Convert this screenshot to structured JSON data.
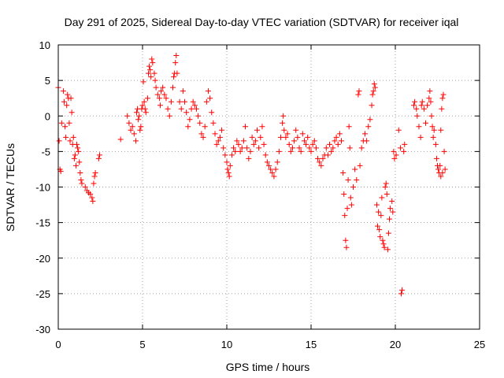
{
  "chart_data": {
    "type": "scatter",
    "title": "Day 291 of 2025, Sidereal Day-to-day VTEC variation (SDTVAR) for receiver iqal",
    "xlabel": "GPS time / hours",
    "ylabel": "SDTVAR / TECUs",
    "xlim": [
      0,
      25
    ],
    "ylim": [
      -30,
      10
    ],
    "xticks": [
      0,
      5,
      10,
      15,
      20,
      25
    ],
    "yticks": [
      -30,
      -25,
      -20,
      -15,
      -10,
      -5,
      0,
      5,
      10
    ],
    "xtick_labels": [
      "0",
      "5",
      "10",
      "15",
      "20",
      "25"
    ],
    "ytick_labels": [
      "-30",
      "-25",
      "-20",
      "-15",
      "-10",
      "-5",
      "0",
      "5",
      "10"
    ],
    "grid": true,
    "marker": "+",
    "marker_color": "#ff0000",
    "series": [
      {
        "name": "SDTVAR",
        "points": [
          [
            0.0,
            4.0
          ],
          [
            0.05,
            -3.5
          ],
          [
            0.1,
            -7.5
          ],
          [
            0.15,
            -7.8
          ],
          [
            0.2,
            -1.0
          ],
          [
            0.3,
            3.5
          ],
          [
            0.35,
            2.0
          ],
          [
            0.4,
            -1.5
          ],
          [
            0.45,
            -3.0
          ],
          [
            0.5,
            1.5
          ],
          [
            0.55,
            3.0
          ],
          [
            0.6,
            2.5
          ],
          [
            0.65,
            -1.0
          ],
          [
            0.7,
            -3.5
          ],
          [
            0.75,
            2.5
          ],
          [
            0.8,
            0.5
          ],
          [
            0.85,
            -4.0
          ],
          [
            0.9,
            -3.0
          ],
          [
            0.95,
            -6.0
          ],
          [
            1.0,
            -5.5
          ],
          [
            1.05,
            -7.0
          ],
          [
            1.1,
            -4.0
          ],
          [
            1.15,
            -4.5
          ],
          [
            1.2,
            -5.0
          ],
          [
            1.25,
            -6.5
          ],
          [
            1.3,
            -8.0
          ],
          [
            1.35,
            -9.0
          ],
          [
            1.4,
            -9.5
          ],
          [
            1.6,
            -10.0
          ],
          [
            1.7,
            -10.5
          ],
          [
            1.8,
            -10.8
          ],
          [
            1.9,
            -11.0
          ],
          [
            2.0,
            -11.5
          ],
          [
            2.05,
            -12.0
          ],
          [
            2.1,
            -9.5
          ],
          [
            2.15,
            -8.5
          ],
          [
            2.2,
            -8.0
          ],
          [
            2.4,
            -6.0
          ],
          [
            2.45,
            -5.5
          ],
          [
            3.7,
            -3.3
          ],
          [
            4.1,
            0.0
          ],
          [
            4.2,
            -1.0
          ],
          [
            4.3,
            -2.0
          ],
          [
            4.4,
            -1.5
          ],
          [
            4.5,
            -2.5
          ],
          [
            4.6,
            -3.5
          ],
          [
            4.65,
            0.5
          ],
          [
            4.7,
            1.0
          ],
          [
            4.75,
            -0.5
          ],
          [
            4.8,
            0.0
          ],
          [
            4.85,
            -2.0
          ],
          [
            4.9,
            -1.5
          ],
          [
            4.95,
            1.0
          ],
          [
            5.0,
            1.5
          ],
          [
            5.05,
            4.8
          ],
          [
            5.1,
            2.0
          ],
          [
            5.15,
            1.0
          ],
          [
            5.2,
            0.5
          ],
          [
            5.3,
            2.5
          ],
          [
            5.35,
            6.0
          ],
          [
            5.4,
            7.0
          ],
          [
            5.45,
            6.5
          ],
          [
            5.5,
            5.5
          ],
          [
            5.55,
            8.0
          ],
          [
            5.6,
            7.5
          ],
          [
            5.7,
            6.0
          ],
          [
            5.75,
            5.0
          ],
          [
            5.8,
            4.0
          ],
          [
            5.9,
            3.0
          ],
          [
            6.0,
            2.5
          ],
          [
            6.05,
            1.5
          ],
          [
            6.1,
            3.5
          ],
          [
            6.2,
            4.0
          ],
          [
            6.3,
            3.0
          ],
          [
            6.4,
            2.5
          ],
          [
            6.5,
            1.0
          ],
          [
            6.6,
            0.0
          ],
          [
            6.7,
            2.0
          ],
          [
            6.8,
            4.0
          ],
          [
            6.85,
            5.5
          ],
          [
            6.9,
            6.0
          ],
          [
            6.95,
            7.5
          ],
          [
            7.0,
            8.5
          ],
          [
            7.05,
            6.0
          ],
          [
            7.2,
            2.0
          ],
          [
            7.3,
            1.0
          ],
          [
            7.4,
            3.5
          ],
          [
            7.5,
            2.0
          ],
          [
            7.6,
            0.5
          ],
          [
            7.7,
            -1.5
          ],
          [
            7.8,
            -0.5
          ],
          [
            7.9,
            1.0
          ],
          [
            8.0,
            2.0
          ],
          [
            8.1,
            1.5
          ],
          [
            8.2,
            1.0
          ],
          [
            8.3,
            0.0
          ],
          [
            8.4,
            -1.0
          ],
          [
            8.5,
            -2.5
          ],
          [
            8.6,
            -3.0
          ],
          [
            8.7,
            -1.5
          ],
          [
            8.8,
            2.0
          ],
          [
            8.9,
            3.5
          ],
          [
            9.0,
            2.5
          ],
          [
            9.1,
            0.5
          ],
          [
            9.2,
            -1.0
          ],
          [
            9.3,
            -2.5
          ],
          [
            9.4,
            -4.0
          ],
          [
            9.5,
            -3.5
          ],
          [
            9.6,
            -3.0
          ],
          [
            9.7,
            -2.0
          ],
          [
            9.8,
            -4.5
          ],
          [
            9.9,
            -5.5
          ],
          [
            10.0,
            -6.5
          ],
          [
            10.05,
            -7.5
          ],
          [
            10.1,
            -8.0
          ],
          [
            10.15,
            -8.5
          ],
          [
            10.2,
            -7.0
          ],
          [
            10.3,
            -5.5
          ],
          [
            10.4,
            -4.5
          ],
          [
            10.5,
            -5.0
          ],
          [
            10.6,
            -3.5
          ],
          [
            10.7,
            -4.0
          ],
          [
            10.8,
            -5.0
          ],
          [
            10.9,
            -4.5
          ],
          [
            11.0,
            -3.5
          ],
          [
            11.1,
            -1.5
          ],
          [
            11.2,
            -4.5
          ],
          [
            11.3,
            -6.0
          ],
          [
            11.4,
            -5.0
          ],
          [
            11.5,
            -3.0
          ],
          [
            11.6,
            -4.0
          ],
          [
            11.7,
            -3.5
          ],
          [
            11.8,
            -2.0
          ],
          [
            11.9,
            -4.5
          ],
          [
            12.0,
            -3.0
          ],
          [
            12.1,
            -1.5
          ],
          [
            12.2,
            -4.0
          ],
          [
            12.3,
            -5.5
          ],
          [
            12.4,
            -6.5
          ],
          [
            12.5,
            -7.0
          ],
          [
            12.6,
            -7.5
          ],
          [
            12.7,
            -8.0
          ],
          [
            12.8,
            -8.5
          ],
          [
            12.9,
            -7.5
          ],
          [
            13.0,
            -6.5
          ],
          [
            13.1,
            -5.0
          ],
          [
            13.2,
            -3.0
          ],
          [
            13.3,
            -1.0
          ],
          [
            13.35,
            0.0
          ],
          [
            13.4,
            -2.0
          ],
          [
            13.5,
            -3.0
          ],
          [
            13.6,
            -2.5
          ],
          [
            13.7,
            -4.0
          ],
          [
            13.8,
            -5.0
          ],
          [
            13.9,
            -4.5
          ],
          [
            14.0,
            -3.5
          ],
          [
            14.1,
            -2.0
          ],
          [
            14.2,
            -3.0
          ],
          [
            14.3,
            -4.5
          ],
          [
            14.4,
            -5.0
          ],
          [
            14.5,
            -2.5
          ],
          [
            14.6,
            -3.5
          ],
          [
            14.7,
            -4.0
          ],
          [
            14.8,
            -3.0
          ],
          [
            14.9,
            -4.5
          ],
          [
            15.0,
            -5.0
          ],
          [
            15.1,
            -4.0
          ],
          [
            15.2,
            -3.5
          ],
          [
            15.3,
            -4.5
          ],
          [
            15.4,
            -6.0
          ],
          [
            15.5,
            -6.5
          ],
          [
            15.6,
            -7.0
          ],
          [
            15.7,
            -6.0
          ],
          [
            15.8,
            -5.5
          ],
          [
            15.9,
            -4.5
          ],
          [
            16.0,
            -5.5
          ],
          [
            16.1,
            -4.0
          ],
          [
            16.2,
            -5.0
          ],
          [
            16.3,
            -4.5
          ],
          [
            16.4,
            -3.5
          ],
          [
            16.5,
            -3.0
          ],
          [
            16.6,
            -4.0
          ],
          [
            16.7,
            -2.5
          ],
          [
            16.8,
            -3.5
          ],
          [
            16.9,
            -8.0
          ],
          [
            16.95,
            -11.0
          ],
          [
            17.0,
            -14.0
          ],
          [
            17.05,
            -17.5
          ],
          [
            17.1,
            -18.5
          ],
          [
            17.15,
            -13.0
          ],
          [
            17.2,
            -9.0
          ],
          [
            17.25,
            -1.5
          ],
          [
            17.3,
            -4.5
          ],
          [
            17.35,
            -11.5
          ],
          [
            17.4,
            -12.5
          ],
          [
            17.5,
            -10.0
          ],
          [
            17.6,
            -7.5
          ],
          [
            17.7,
            -9.0
          ],
          [
            17.8,
            3.0
          ],
          [
            17.85,
            3.5
          ],
          [
            17.9,
            -7.0
          ],
          [
            18.0,
            -4.5
          ],
          [
            18.1,
            -3.5
          ],
          [
            18.2,
            -2.5
          ],
          [
            18.3,
            -3.5
          ],
          [
            18.4,
            -1.5
          ],
          [
            18.5,
            -0.5
          ],
          [
            18.6,
            1.5
          ],
          [
            18.65,
            3.0
          ],
          [
            18.7,
            3.5
          ],
          [
            18.75,
            4.5
          ],
          [
            18.8,
            4.0
          ],
          [
            18.9,
            -12.5
          ],
          [
            18.95,
            -15.5
          ],
          [
            19.0,
            -13.5
          ],
          [
            19.05,
            -16.0
          ],
          [
            19.1,
            -17.0
          ],
          [
            19.15,
            -14.0
          ],
          [
            19.2,
            -11.5
          ],
          [
            19.25,
            -17.5
          ],
          [
            19.3,
            -18.0
          ],
          [
            19.35,
            -18.5
          ],
          [
            19.4,
            -10.0
          ],
          [
            19.45,
            -9.5
          ],
          [
            19.5,
            -11.0
          ],
          [
            19.55,
            -18.8
          ],
          [
            19.6,
            -16.5
          ],
          [
            19.65,
            -14.5
          ],
          [
            19.7,
            -13.0
          ],
          [
            19.8,
            -12.0
          ],
          [
            19.85,
            -13.5
          ],
          [
            19.9,
            -5.0
          ],
          [
            19.95,
            -6.0
          ],
          [
            20.05,
            -5.5
          ],
          [
            20.2,
            -2.0
          ],
          [
            20.3,
            -4.5
          ],
          [
            20.35,
            -25.0
          ],
          [
            20.4,
            -24.5
          ],
          [
            20.5,
            -5.0
          ],
          [
            20.55,
            -4.0
          ],
          [
            21.1,
            1.5
          ],
          [
            21.15,
            2.0
          ],
          [
            21.25,
            1.0
          ],
          [
            21.3,
            0.0
          ],
          [
            21.4,
            -1.5
          ],
          [
            21.5,
            -3.0
          ],
          [
            21.55,
            1.5
          ],
          [
            21.6,
            2.0
          ],
          [
            21.7,
            1.0
          ],
          [
            21.8,
            -1.0
          ],
          [
            21.9,
            1.5
          ],
          [
            22.0,
            2.5
          ],
          [
            22.05,
            3.5
          ],
          [
            22.1,
            2.0
          ],
          [
            22.15,
            0.0
          ],
          [
            22.2,
            -1.5
          ],
          [
            22.25,
            -3.0
          ],
          [
            22.3,
            -2.0
          ],
          [
            22.4,
            -4.0
          ],
          [
            22.45,
            -6.0
          ],
          [
            22.5,
            -7.0
          ],
          [
            22.55,
            -7.5
          ],
          [
            22.6,
            -8.0
          ],
          [
            22.65,
            -7.0
          ],
          [
            22.7,
            -2.0
          ],
          [
            22.75,
            1.0
          ],
          [
            22.8,
            2.5
          ],
          [
            22.85,
            3.0
          ],
          [
            22.9,
            -5.0
          ],
          [
            22.95,
            -7.5
          ],
          [
            22.7,
            -8.5
          ],
          [
            22.8,
            -8.0
          ]
        ]
      }
    ]
  }
}
